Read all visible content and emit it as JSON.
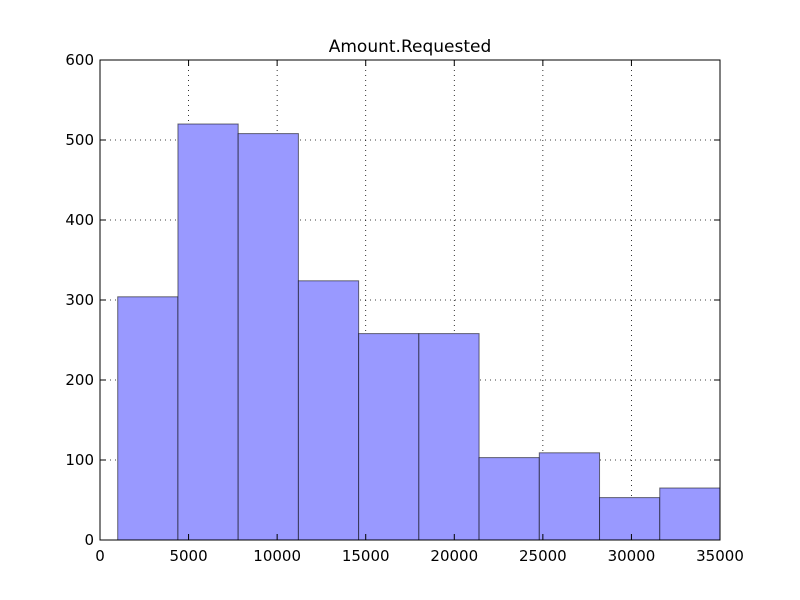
{
  "chart_data": {
    "type": "bar",
    "title": "Amount.Requested",
    "xlabel": "",
    "ylabel": "",
    "xlim": [
      0,
      35000
    ],
    "ylim": [
      0,
      600
    ],
    "grid": true,
    "bar_color": "#9999ff",
    "x_ticks": [
      0,
      5000,
      10000,
      15000,
      20000,
      25000,
      30000,
      35000
    ],
    "x_tick_labels": [
      "0",
      "5000",
      "10000",
      "15000",
      "20000",
      "25000",
      "30000",
      "35000"
    ],
    "y_ticks": [
      0,
      100,
      200,
      300,
      400,
      500,
      600
    ],
    "y_tick_labels": [
      "0",
      "100",
      "200",
      "300",
      "400",
      "500",
      "600"
    ],
    "bins": [
      {
        "start": 1000,
        "end": 4400,
        "count": 304
      },
      {
        "start": 4400,
        "end": 7800,
        "count": 520
      },
      {
        "start": 7800,
        "end": 11200,
        "count": 508
      },
      {
        "start": 11200,
        "end": 14600,
        "count": 324
      },
      {
        "start": 14600,
        "end": 18000,
        "count": 258
      },
      {
        "start": 18000,
        "end": 21400,
        "count": 258
      },
      {
        "start": 21400,
        "end": 24800,
        "count": 103
      },
      {
        "start": 24800,
        "end": 28200,
        "count": 109
      },
      {
        "start": 28200,
        "end": 31600,
        "count": 53
      },
      {
        "start": 31600,
        "end": 35000,
        "count": 65
      }
    ]
  }
}
